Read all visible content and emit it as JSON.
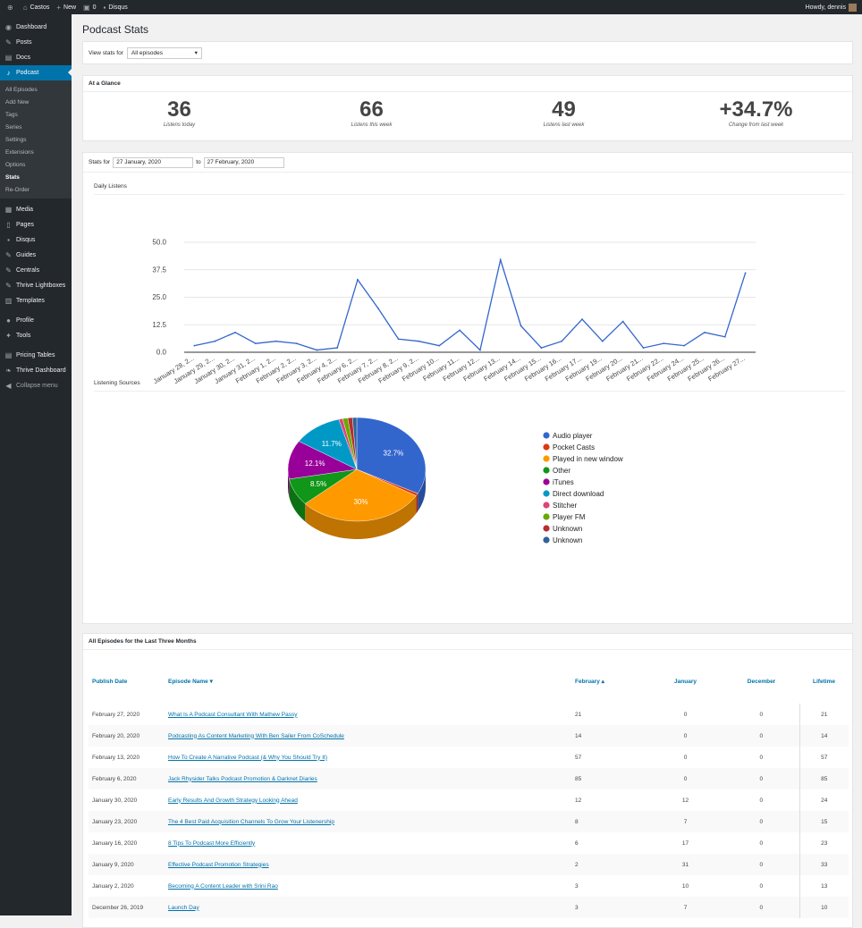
{
  "adminbar": {
    "site": "Castos",
    "new": "New",
    "comments": "0",
    "disqus": "Disqus",
    "howdy": "Howdy, dennis"
  },
  "sidebar": {
    "items": [
      {
        "label": "Dashboard",
        "icon": "dashboard-icon"
      },
      {
        "label": "Posts",
        "icon": "pin-icon"
      },
      {
        "label": "Docs",
        "icon": "docs-icon"
      },
      {
        "label": "Podcast",
        "icon": "microphone-icon"
      }
    ],
    "submenu": [
      "All Episodes",
      "Add New",
      "Tags",
      "Series",
      "Settings",
      "Extensions",
      "Options",
      "Stats",
      "Re-Order"
    ],
    "items2": [
      {
        "label": "Media",
        "icon": "media-icon"
      },
      {
        "label": "Pages",
        "icon": "pages-icon"
      },
      {
        "label": "Disqus",
        "icon": "comment-icon"
      },
      {
        "label": "Guides",
        "icon": "pin-icon"
      },
      {
        "label": "Centrals",
        "icon": "pin-icon"
      },
      {
        "label": "Thrive Lightboxes",
        "icon": "pin-icon"
      },
      {
        "label": "Templates",
        "icon": "templates-icon"
      }
    ],
    "items3": [
      {
        "label": "Profile",
        "icon": "user-icon"
      },
      {
        "label": "Tools",
        "icon": "wrench-icon"
      }
    ],
    "items4": [
      {
        "label": "Pricing Tables",
        "icon": "table-icon"
      },
      {
        "label": "Thrive Dashboard",
        "icon": "leaf-icon"
      },
      {
        "label": "Collapse menu",
        "icon": "collapse-icon"
      }
    ]
  },
  "page": {
    "title": "Podcast Stats",
    "view_stats_label": "View stats for",
    "view_stats_value": "All episodes"
  },
  "glance": {
    "title": "At a Glance",
    "stats": [
      {
        "value": "36",
        "label": "Listens today"
      },
      {
        "value": "66",
        "label": "Listens this week"
      },
      {
        "value": "49",
        "label": "Listens last week"
      },
      {
        "value": "+34.7%",
        "label": "Change from last week"
      }
    ]
  },
  "range": {
    "label": "Stats for",
    "from": "27 January, 2020",
    "to_label": "to",
    "to": "27 February, 2020"
  },
  "daily_title": "Daily Listens",
  "sources_title": "Listening Sources",
  "colors": {
    "line": "#3366cc",
    "pie": [
      "#3366cc",
      "#dc3912",
      "#ff9900",
      "#109618",
      "#990099",
      "#0099c6",
      "#dd4477",
      "#66aa00",
      "#b82e2e",
      "#316395"
    ]
  },
  "chart_data": [
    {
      "type": "line",
      "title": "Daily Listens",
      "categories": [
        "January 28, 2...",
        "January 29, 2...",
        "January 30, 2...",
        "January 31, 2...",
        "February 1, 2...",
        "February 2, 2...",
        "February 3, 2...",
        "February 4, 2...",
        "February 6, 2...",
        "February 7, 2...",
        "February 8, 2...",
        "February 9, 2...",
        "February 10...",
        "February 11...",
        "February 12...",
        "February 13...",
        "February 14...",
        "February 15...",
        "February 16...",
        "February 17...",
        "February 19...",
        "February 20...",
        "February 21...",
        "February 22...",
        "February 24...",
        "February 25...",
        "February 26...",
        "February 27..."
      ],
      "values": [
        3,
        5,
        9,
        4,
        5,
        4,
        1,
        2,
        33,
        20,
        6,
        5,
        3,
        10,
        1,
        42,
        12,
        2,
        5,
        15,
        5,
        14,
        2,
        4,
        3,
        9,
        7,
        36
      ],
      "yticks": [
        "0.0",
        "12.5",
        "25.0",
        "37.5",
        "50.0"
      ],
      "ylim": [
        0,
        50
      ],
      "grid": true
    },
    {
      "type": "pie",
      "title": "Listening Sources",
      "legend": [
        "Audio player",
        "Pocket Casts",
        "Played in new window",
        "Other",
        "iTunes",
        "Direct download",
        "Stitcher",
        "Player FM",
        "Unknown",
        "Unknown"
      ],
      "values": [
        32.7,
        0.8,
        30,
        8.5,
        12.1,
        11.7,
        0.9,
        1.2,
        1.1,
        1.0
      ],
      "slice_labels": [
        "32.7%",
        "",
        "30%",
        "8.5%",
        "12.1%",
        "11.7%",
        "",
        "",
        "",
        ""
      ],
      "legend_position": "right"
    }
  ],
  "episodes": {
    "title": "All Episodes for the Last Three Months",
    "headers": {
      "date": "Publish Date",
      "name": "Episode Name",
      "feb": "February",
      "jan": "January",
      "dec": "December",
      "life": "Lifetime"
    },
    "rows": [
      {
        "date": "February 27, 2020",
        "name": "What Is A Podcast Consultant With Mathew Passy",
        "feb": "21",
        "jan": "0",
        "dec": "0",
        "life": "21"
      },
      {
        "date": "February 20, 2020",
        "name": "Podcasting As Content Marketing With Ben Sailer From CoSchedule",
        "feb": "14",
        "jan": "0",
        "dec": "0",
        "life": "14"
      },
      {
        "date": "February 13, 2020",
        "name": "How To Create A Narrative Podcast (& Why You Should Try It)",
        "feb": "57",
        "jan": "0",
        "dec": "0",
        "life": "57"
      },
      {
        "date": "February 6, 2020",
        "name": "Jack Rhysider Talks Podcast Promotion & Darknet Diaries",
        "feb": "85",
        "jan": "0",
        "dec": "0",
        "life": "85"
      },
      {
        "date": "January 30, 2020",
        "name": "Early Results And Growth Strategy Looking Ahead",
        "feb": "12",
        "jan": "12",
        "dec": "0",
        "life": "24"
      },
      {
        "date": "January 23, 2020",
        "name": "The 4 Best Paid Acquisition Channels To Grow Your Listenership",
        "feb": "8",
        "jan": "7",
        "dec": "0",
        "life": "15"
      },
      {
        "date": "January 16, 2020",
        "name": "8 Tips To Podcast More Efficiently",
        "feb": "6",
        "jan": "17",
        "dec": "0",
        "life": "23"
      },
      {
        "date": "January 9, 2020",
        "name": "Effective Podcast Promotion Strategies",
        "feb": "2",
        "jan": "31",
        "dec": "0",
        "life": "33"
      },
      {
        "date": "January 2, 2020",
        "name": "Becoming A Content Leader with Srini Rao",
        "feb": "3",
        "jan": "10",
        "dec": "0",
        "life": "13"
      },
      {
        "date": "December 26, 2019",
        "name": "Launch Day",
        "feb": "3",
        "jan": "7",
        "dec": "0",
        "life": "10"
      }
    ]
  }
}
